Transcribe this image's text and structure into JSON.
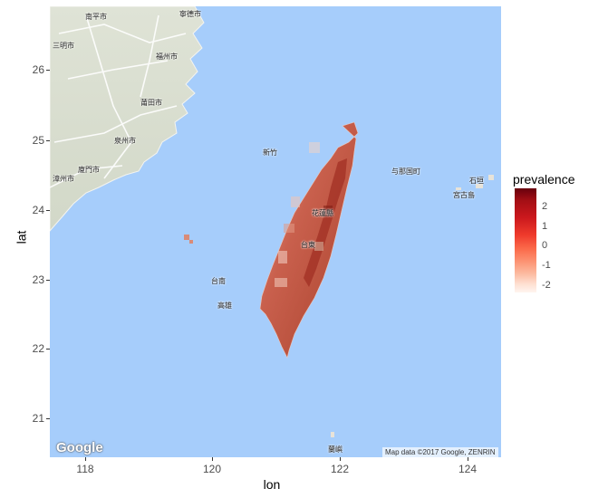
{
  "plot": {
    "x_axis_title": "lon",
    "y_axis_title": "lat",
    "x_ticks": [
      "118",
      "120",
      "122",
      "124"
    ],
    "y_ticks": [
      "21",
      "22",
      "23",
      "24",
      "25",
      "26"
    ]
  },
  "legend": {
    "title": "prevalence",
    "labels": [
      "2",
      "1",
      "0",
      "-1",
      "-2"
    ]
  },
  "basemap": {
    "logo": "Google",
    "attribution": "Map data ©2017 Google, ZENRIN",
    "place_labels": [
      "福州市",
      "莆田市",
      "泉州市",
      "廈門市",
      "漳州市",
      "寧德市",
      "三明市",
      "南平市",
      "新竹",
      "花蓮縣",
      "台東",
      "高雄",
      "台南",
      "石垣",
      "与那国町",
      "宮古島",
      "蘭嶼"
    ]
  },
  "colors": {
    "sea": "#a6cdfb",
    "land": "#dfe4d8",
    "high": "#67000d",
    "low": "#fff5f0"
  },
  "chart_data": {
    "type": "map-choropleth",
    "x_variable": "lon",
    "y_variable": "lat",
    "fill_variable": "prevalence",
    "xlim": [
      117.4,
      124.5
    ],
    "ylim": [
      20.45,
      26.85
    ],
    "x_ticks": [
      118,
      120,
      122,
      124
    ],
    "y_ticks": [
      21,
      22,
      23,
      24,
      25,
      26
    ],
    "legend_range": [
      -2.5,
      2.8
    ],
    "legend_breaks": [
      2,
      1,
      0,
      -1,
      -2
    ],
    "legend_placement": "right",
    "grid": false
  }
}
